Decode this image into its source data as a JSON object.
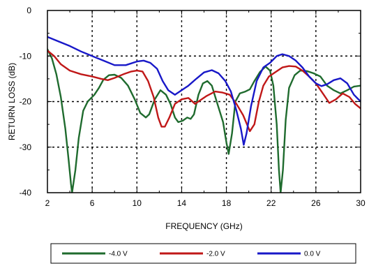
{
  "chart_data": {
    "type": "line",
    "title": "",
    "xlabel": "FREQUENCY (GHz)",
    "ylabel": "RETURN LOSS (dB)",
    "xlim": [
      2,
      30
    ],
    "ylim": [
      -40,
      0
    ],
    "xticks": [
      2,
      6,
      10,
      14,
      18,
      22,
      26,
      30
    ],
    "yticks": [
      0,
      -10,
      -20,
      -30,
      -40
    ],
    "grid": true,
    "grid_style": "dotted",
    "legend_position": "bottom",
    "series": [
      {
        "name": "-4.0 V",
        "color": "#1f6b2e",
        "points": [
          [
            2,
            -8.5
          ],
          [
            2.4,
            -10.5
          ],
          [
            2.8,
            -14
          ],
          [
            3.2,
            -19
          ],
          [
            3.6,
            -26
          ],
          [
            3.9,
            -33
          ],
          [
            4.1,
            -38
          ],
          [
            4.2,
            -40
          ],
          [
            4.5,
            -35
          ],
          [
            4.8,
            -28
          ],
          [
            5.2,
            -22
          ],
          [
            5.6,
            -20
          ],
          [
            6.2,
            -18.5
          ],
          [
            6.6,
            -17
          ],
          [
            7,
            -15.2
          ],
          [
            7.5,
            -14.2
          ],
          [
            8,
            -14.1
          ],
          [
            8.6,
            -14.8
          ],
          [
            9.2,
            -16.5
          ],
          [
            9.8,
            -19.5
          ],
          [
            10.3,
            -22.5
          ],
          [
            10.8,
            -23.5
          ],
          [
            11.1,
            -22.8
          ],
          [
            11.6,
            -19.5
          ],
          [
            12.1,
            -17.5
          ],
          [
            12.6,
            -18.5
          ],
          [
            13,
            -20.5
          ],
          [
            13.4,
            -23.5
          ],
          [
            13.7,
            -24.5
          ],
          [
            14.1,
            -24.2
          ],
          [
            14.5,
            -23.5
          ],
          [
            14.8,
            -23.8
          ],
          [
            15.1,
            -22.8
          ],
          [
            15.5,
            -18.5
          ],
          [
            15.9,
            -16
          ],
          [
            16.3,
            -15.5
          ],
          [
            16.7,
            -16.5
          ],
          [
            17.2,
            -20.5
          ],
          [
            17.7,
            -24.5
          ],
          [
            18,
            -29
          ],
          [
            18.2,
            -31.5
          ],
          [
            18.5,
            -27
          ],
          [
            18.8,
            -20
          ],
          [
            19.2,
            -18.2
          ],
          [
            19.7,
            -17.8
          ],
          [
            20.1,
            -17.3
          ],
          [
            20.5,
            -15.5
          ],
          [
            21,
            -13.5
          ],
          [
            21.5,
            -12.3
          ],
          [
            21.9,
            -13.2
          ],
          [
            22.2,
            -16.5
          ],
          [
            22.5,
            -25
          ],
          [
            22.7,
            -35
          ],
          [
            22.85,
            -40
          ],
          [
            23.05,
            -35
          ],
          [
            23.3,
            -24
          ],
          [
            23.6,
            -17
          ],
          [
            24.1,
            -14.2
          ],
          [
            24.6,
            -13.2
          ],
          [
            25.2,
            -13.3
          ],
          [
            25.8,
            -13.8
          ],
          [
            26.4,
            -14.5
          ],
          [
            27,
            -16.5
          ],
          [
            27.6,
            -17.5
          ],
          [
            28.2,
            -18.2
          ],
          [
            28.8,
            -17.5
          ],
          [
            29.4,
            -16.7
          ],
          [
            30,
            -16.5
          ]
        ]
      },
      {
        "name": "-2.0 V",
        "color": "#c01818",
        "points": [
          [
            2,
            -8.8
          ],
          [
            2.6,
            -10
          ],
          [
            3.2,
            -11.8
          ],
          [
            4,
            -13.2
          ],
          [
            5,
            -14
          ],
          [
            6,
            -14.5
          ],
          [
            6.8,
            -15
          ],
          [
            7.4,
            -15.3
          ],
          [
            8,
            -14.8
          ],
          [
            8.8,
            -14
          ],
          [
            9.5,
            -13.4
          ],
          [
            10,
            -13.2
          ],
          [
            10.5,
            -13.4
          ],
          [
            11,
            -15.5
          ],
          [
            11.5,
            -19
          ],
          [
            11.9,
            -23.5
          ],
          [
            12.2,
            -25.5
          ],
          [
            12.5,
            -25.5
          ],
          [
            12.9,
            -23.5
          ],
          [
            13.4,
            -20.5
          ],
          [
            14,
            -19.5
          ],
          [
            14.6,
            -19.2
          ],
          [
            15.2,
            -20.5
          ],
          [
            15.6,
            -19.8
          ],
          [
            16.2,
            -18.8
          ],
          [
            17,
            -17.8
          ],
          [
            17.6,
            -18
          ],
          [
            18.3,
            -18.5
          ],
          [
            18.9,
            -20.5
          ],
          [
            19.5,
            -23
          ],
          [
            20.1,
            -26.5
          ],
          [
            20.5,
            -25
          ],
          [
            20.9,
            -20
          ],
          [
            21.3,
            -16.5
          ],
          [
            21.8,
            -14.5
          ],
          [
            22.4,
            -13.5
          ],
          [
            23,
            -12.5
          ],
          [
            23.6,
            -12.2
          ],
          [
            24.2,
            -12.3
          ],
          [
            24.8,
            -13.2
          ],
          [
            25.4,
            -14.5
          ],
          [
            26,
            -16
          ],
          [
            26.7,
            -18.5
          ],
          [
            27.2,
            -20.3
          ],
          [
            27.8,
            -19.5
          ],
          [
            28.4,
            -18.2
          ],
          [
            29,
            -19
          ],
          [
            29.5,
            -20.5
          ],
          [
            30,
            -21.5
          ]
        ]
      },
      {
        "name": "0.0 V",
        "color": "#1818c8",
        "points": [
          [
            2,
            -5.8
          ],
          [
            3,
            -6.8
          ],
          [
            4,
            -7.8
          ],
          [
            5,
            -9
          ],
          [
            6,
            -10
          ],
          [
            7,
            -11
          ],
          [
            8,
            -12
          ],
          [
            9,
            -12
          ],
          [
            10,
            -11.2
          ],
          [
            10.6,
            -11
          ],
          [
            11.2,
            -11.5
          ],
          [
            11.8,
            -12.8
          ],
          [
            12.3,
            -15.5
          ],
          [
            12.8,
            -17.5
          ],
          [
            13.4,
            -18.5
          ],
          [
            14,
            -17.5
          ],
          [
            14.6,
            -16.5
          ],
          [
            15.3,
            -15
          ],
          [
            16,
            -13.6
          ],
          [
            16.7,
            -13.1
          ],
          [
            17.3,
            -13.8
          ],
          [
            17.9,
            -15.5
          ],
          [
            18.4,
            -17.8
          ],
          [
            18.9,
            -22
          ],
          [
            19.3,
            -26
          ],
          [
            19.55,
            -29.5
          ],
          [
            19.8,
            -27
          ],
          [
            20.2,
            -21
          ],
          [
            20.7,
            -15.5
          ],
          [
            21.3,
            -12.5
          ],
          [
            21.9,
            -11.5
          ],
          [
            22.5,
            -10
          ],
          [
            23,
            -9.6
          ],
          [
            23.6,
            -10
          ],
          [
            24.2,
            -11
          ],
          [
            24.8,
            -12.5
          ],
          [
            25.4,
            -14.5
          ],
          [
            26,
            -16
          ],
          [
            26.5,
            -16.6
          ],
          [
            27,
            -16.2
          ],
          [
            27.6,
            -15.3
          ],
          [
            28.2,
            -14.9
          ],
          [
            28.8,
            -16
          ],
          [
            29.4,
            -18.5
          ],
          [
            30,
            -20
          ]
        ]
      }
    ]
  }
}
